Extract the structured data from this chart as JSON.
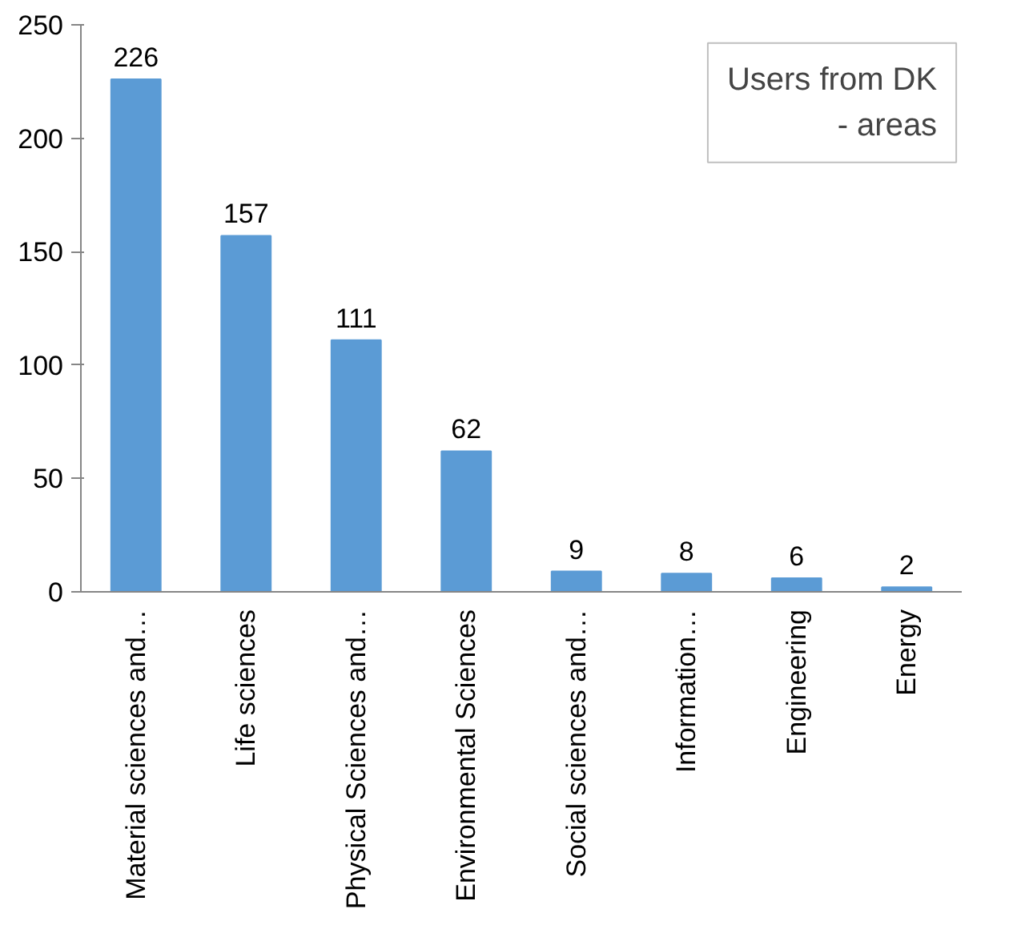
{
  "chart_data": {
    "type": "bar",
    "title": "Users from DK\n- areas",
    "categories": [
      "Material sciences and…",
      "Life sciences",
      "Physical Sciences and…",
      "Environmental Sciences",
      "Social sciences and…",
      "Information…",
      "Engineering",
      "Energy"
    ],
    "values": [
      226,
      157,
      111,
      62,
      9,
      8,
      6,
      2
    ],
    "color": "#5b9bd5",
    "ylim": [
      0,
      250
    ],
    "yticks": [
      0,
      50,
      100,
      150,
      200,
      250
    ],
    "grid": false,
    "data_labels": true
  }
}
